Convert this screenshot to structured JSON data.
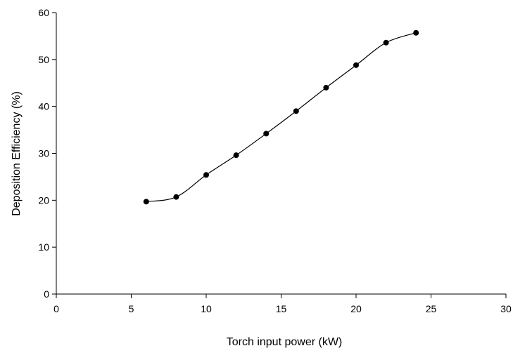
{
  "chart_data": {
    "type": "scatter",
    "title": "",
    "xlabel": "Torch input power (kW)",
    "ylabel": "Deposition Efficiency (%)",
    "xlim": [
      0,
      30
    ],
    "ylim": [
      0,
      60
    ],
    "xticks": [
      "0",
      "5",
      "10",
      "15",
      "20",
      "25",
      "30"
    ],
    "yticks": [
      "0",
      "10",
      "20",
      "30",
      "40",
      "50",
      "60"
    ],
    "grid": false,
    "legend": "none",
    "line_style": "smoothed",
    "colors": {
      "line": "#000000",
      "marker": "#000000",
      "axis": "#000000"
    },
    "series": [
      {
        "x": [
          6,
          8,
          10,
          12,
          14,
          16,
          18,
          20,
          22,
          24
        ],
        "y": [
          19.7,
          20.7,
          25.4,
          29.6,
          34.2,
          39.0,
          44.0,
          48.8,
          53.6,
          55.7
        ]
      }
    ]
  }
}
